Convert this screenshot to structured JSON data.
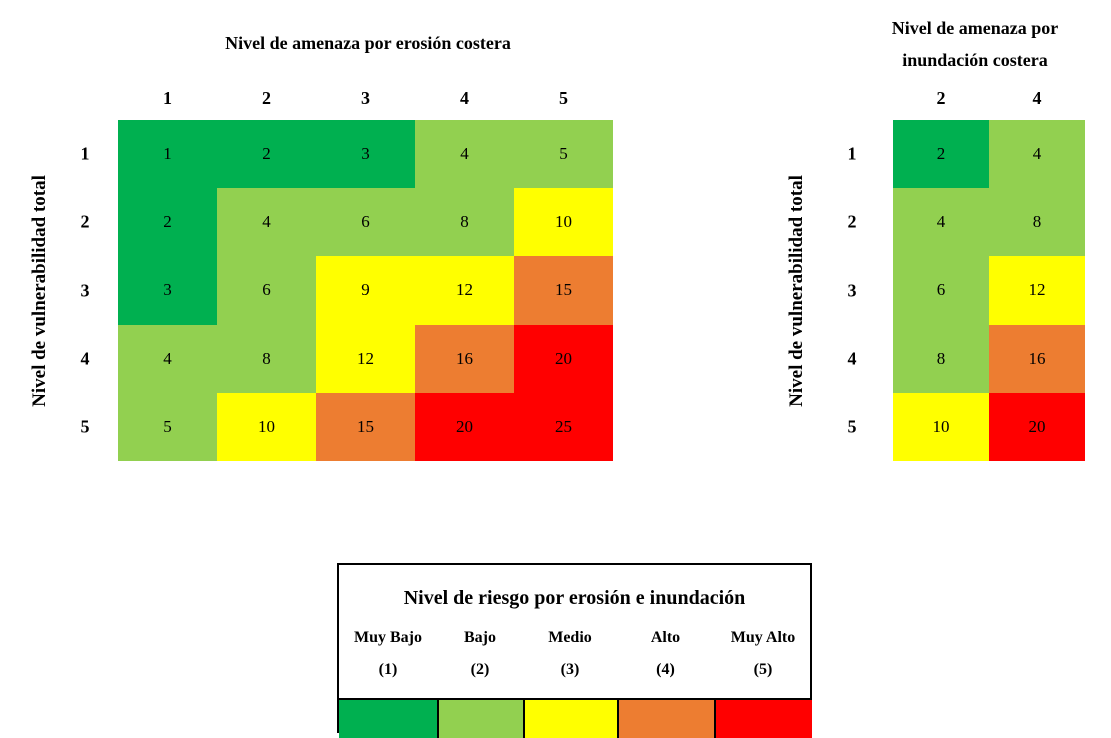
{
  "left_matrix": {
    "title": "Nivel de amenaza por erosión costera",
    "row_axis_label": "Nivel de vulnerabilidad total",
    "columns": [
      "1",
      "2",
      "3",
      "4",
      "5"
    ],
    "rows": [
      "1",
      "2",
      "3",
      "4",
      "5"
    ],
    "cells": [
      [
        1,
        2,
        3,
        4,
        5
      ],
      [
        2,
        4,
        6,
        8,
        10
      ],
      [
        3,
        6,
        9,
        12,
        15
      ],
      [
        4,
        8,
        12,
        16,
        20
      ],
      [
        5,
        10,
        15,
        20,
        25
      ]
    ],
    "colors": [
      [
        "#00b050",
        "#00b050",
        "#00b050",
        "#92d050",
        "#92d050"
      ],
      [
        "#00b050",
        "#92d050",
        "#92d050",
        "#92d050",
        "#ffff00"
      ],
      [
        "#00b050",
        "#92d050",
        "#ffff00",
        "#ffff00",
        "#ed7d31"
      ],
      [
        "#92d050",
        "#92d050",
        "#ffff00",
        "#ed7d31",
        "#ff0000"
      ],
      [
        "#92d050",
        "#ffff00",
        "#ed7d31",
        "#ff0000",
        "#ff0000"
      ]
    ]
  },
  "right_matrix": {
    "title": [
      "Nivel de amenaza por",
      "inundación costera"
    ],
    "row_axis_label": "Nivel de vulnerabilidad total",
    "columns": [
      "2",
      "4"
    ],
    "rows": [
      "1",
      "2",
      "3",
      "4",
      "5"
    ],
    "cells": [
      [
        2,
        4
      ],
      [
        4,
        8
      ],
      [
        6,
        12
      ],
      [
        8,
        16
      ],
      [
        10,
        20
      ]
    ],
    "colors": [
      [
        "#00b050",
        "#92d050"
      ],
      [
        "#92d050",
        "#92d050"
      ],
      [
        "#92d050",
        "#ffff00"
      ],
      [
        "#92d050",
        "#ed7d31"
      ],
      [
        "#ffff00",
        "#ff0000"
      ]
    ]
  },
  "legend": {
    "title": "Nivel de riesgo por erosión e inundación",
    "items": [
      {
        "name": "Muy Bajo",
        "level": "(1)",
        "color": "#00b050"
      },
      {
        "name": "Bajo",
        "level": "(2)",
        "color": "#92d050"
      },
      {
        "name": "Medio",
        "level": "(3)",
        "color": "#ffff00"
      },
      {
        "name": "Alto",
        "level": "(4)",
        "color": "#ed7d31"
      },
      {
        "name": "Muy Alto",
        "level": "(5)",
        "color": "#ff0000"
      }
    ]
  }
}
